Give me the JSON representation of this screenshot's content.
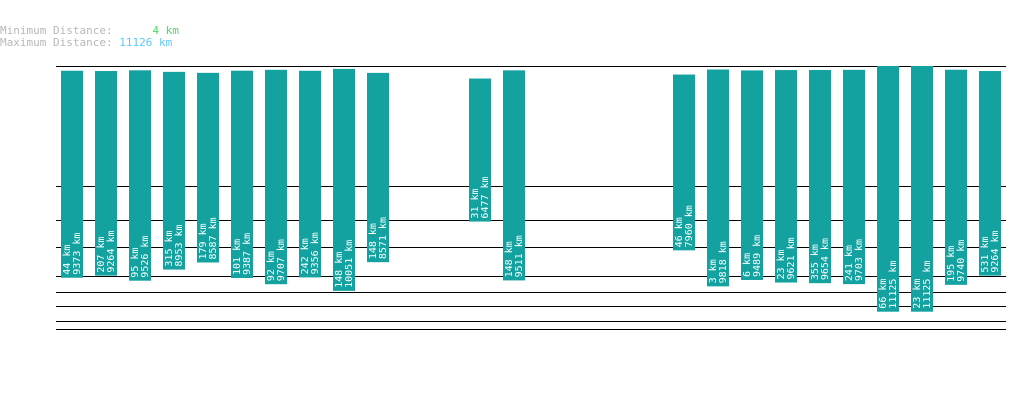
{
  "legend": {
    "min_label": "Minimum Distance:",
    "min_value": "4 km",
    "max_label": "Maximum Distance:",
    "max_value": "11126 km"
  },
  "colors": {
    "bar": "#13a2a0",
    "line": "#000000",
    "bar_text": "#ffffff",
    "min_value": "#4cd964",
    "max_value": "#5cc8ff",
    "legend_label": "#b8b8b8"
  },
  "chart_data": {
    "type": "bar",
    "slots": 28,
    "bars": [
      {
        "slot": 0,
        "top": "44 km",
        "bottom": "9373 km",
        "value": 9373
      },
      {
        "slot": 1,
        "top": "207 km",
        "bottom": "9264 km",
        "value": 9264
      },
      {
        "slot": 2,
        "top": "95 km",
        "bottom": "9526 km",
        "value": 9526
      },
      {
        "slot": 3,
        "top": "315 km",
        "bottom": "8953 km",
        "value": 8953
      },
      {
        "slot": 4,
        "top": "179 km",
        "bottom": "8587 km",
        "value": 8587
      },
      {
        "slot": 5,
        "top": "101 km",
        "bottom": "9387 km",
        "value": 9387
      },
      {
        "slot": 6,
        "top": "92 km",
        "bottom": "9707 km",
        "value": 9707
      },
      {
        "slot": 7,
        "top": "242 km",
        "bottom": "9356 km",
        "value": 9356
      },
      {
        "slot": 8,
        "top": "148 km",
        "bottom": "10051 km",
        "value": 10051
      },
      {
        "slot": 9,
        "top": "148 km",
        "bottom": "8571 km",
        "value": 8571
      },
      {
        "slot": 12,
        "top": "31 km",
        "bottom": "6477 km",
        "value": 6477
      },
      {
        "slot": 13,
        "top": "148 km",
        "bottom": "9511 km",
        "value": 9511
      },
      {
        "slot": 18,
        "top": "46 km",
        "bottom": "7960 km",
        "value": 7960
      },
      {
        "slot": 19,
        "top": "3 km",
        "bottom": "9818 km",
        "value": 9818
      },
      {
        "slot": 20,
        "top": "6 km",
        "bottom": "9489 km",
        "value": 9489
      },
      {
        "slot": 21,
        "top": "23 km",
        "bottom": "9621 km",
        "value": 9621
      },
      {
        "slot": 22,
        "top": "355 km",
        "bottom": "9654 km",
        "value": 9654
      },
      {
        "slot": 23,
        "top": "241 km",
        "bottom": "9703 km",
        "value": 9703
      },
      {
        "slot": 24,
        "top": "66 km",
        "bottom": "11125 km",
        "value": 11125
      },
      {
        "slot": 25,
        "top": "23 km",
        "bottom": "11125 km",
        "value": 11125
      },
      {
        "slot": 26,
        "top": "195 km",
        "bottom": "9740 km",
        "value": 9740
      },
      {
        "slot": 27,
        "top": "531 km",
        "bottom": "9264 km",
        "value": 9264
      }
    ]
  }
}
